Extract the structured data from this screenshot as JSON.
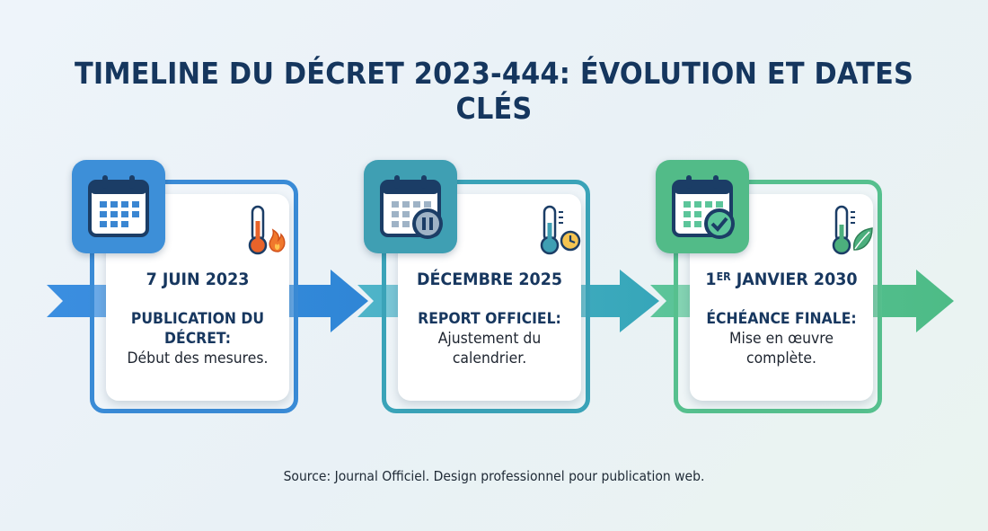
{
  "title": "TIMELINE DU DÉCRET 2023-444: ÉVOLUTION ET DATES CLÉS",
  "steps": [
    {
      "date": "7 JUIN 2023",
      "label": "PUBLICATION DU DÉCRET:",
      "description": "Début des mesures.",
      "icon": "calendar-icon",
      "indicator_icon": "thermometer-flame-icon",
      "color": "#3d8fd8"
    },
    {
      "date": "DÉCEMBRE 2025",
      "label": "REPORT OFFICIEL:",
      "description": "Ajustement du calendrier.",
      "icon": "calendar-pause-icon",
      "indicator_icon": "thermometer-clock-icon",
      "color": "#3aa3b8"
    },
    {
      "date_main": "1",
      "date_sup": "ER",
      "date_rest": " JANVIER 2030",
      "label": "ÉCHÉANCE FINALE:",
      "description": "Mise en œuvre complète.",
      "icon": "calendar-check-icon",
      "indicator_icon": "thermometer-leaf-icon",
      "color": "#4fbe8a"
    }
  ],
  "source": "Source: Journal Officiel. Design professionnel pour publication web."
}
